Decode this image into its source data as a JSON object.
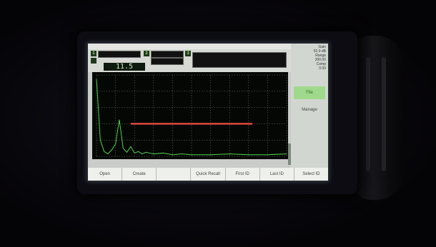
{
  "screen": {
    "gate_tags": [
      "1",
      "2",
      "3"
    ],
    "readout_value": "11.5",
    "status_text": "",
    "side_panel": {
      "header_lines": [
        "Gain",
        "52.0 dB",
        "Range",
        "200.00",
        "Comp",
        "0.00"
      ],
      "buttons": [
        {
          "label": "File",
          "active": true
        },
        {
          "label": "Manage",
          "active": false
        }
      ]
    },
    "function_keys": [
      "Open",
      "Create",
      "",
      "Quick Recall",
      "First ID",
      "Last ID",
      "Select ID"
    ]
  },
  "chart_data": {
    "type": "line",
    "x": [
      0,
      2,
      4,
      6,
      8,
      10,
      12,
      14,
      16,
      18,
      20,
      22,
      24,
      26,
      28,
      30,
      35,
      40,
      45,
      50,
      60,
      70,
      80,
      90,
      100
    ],
    "y": [
      95,
      20,
      6,
      3,
      8,
      15,
      45,
      10,
      5,
      12,
      4,
      6,
      3,
      5,
      4,
      3,
      4,
      2,
      3,
      2,
      2,
      3,
      2,
      2,
      3
    ],
    "gate": {
      "start": 18,
      "end": 82,
      "level": 40
    },
    "xlim": [
      0,
      100
    ],
    "ylim": [
      0,
      100
    ],
    "grid": true,
    "colors": {
      "trace": "#4fd34a",
      "gate": "#e0473a",
      "grid": "#6f786f"
    }
  }
}
